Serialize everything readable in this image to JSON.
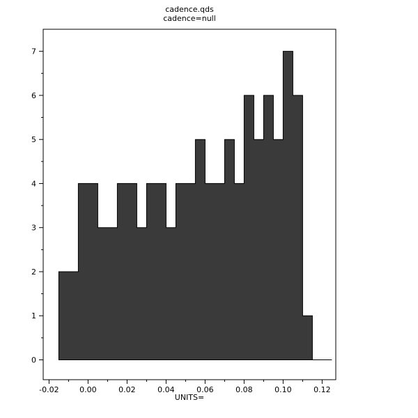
{
  "window": {
    "title": "cadence.qds"
  },
  "chart_data": {
    "type": "bar",
    "subtype": "histogram",
    "title": "cadence.qds",
    "subtitle": "cadence=null",
    "xlabel": "UNITS=",
    "ylabel": "",
    "bar_color": "#3a3a3a",
    "bar_stroke": "#000000",
    "bin_start": -0.015,
    "bin_width": 0.005,
    "counts": [
      2,
      2,
      4,
      4,
      3,
      3,
      4,
      4,
      3,
      4,
      4,
      3,
      4,
      4,
      5,
      4,
      4,
      5,
      4,
      6,
      5,
      6,
      5,
      7,
      6,
      1,
      0,
      0
    ],
    "xlim": [
      -0.023,
      0.127
    ],
    "ylim": [
      -0.45,
      7.5
    ],
    "grid": false,
    "legend": "none",
    "x_ticks": {
      "values": [
        -0.02,
        0.0,
        0.02,
        0.04,
        0.06,
        0.08,
        0.1,
        0.12
      ],
      "labels": [
        "-0.02",
        "0.00",
        "0.02",
        "0.04",
        "0.06",
        "0.08",
        "0.10",
        "0.12"
      ]
    },
    "x_minor_ticks": [
      -0.01,
      0.01,
      0.03,
      0.05,
      0.07,
      0.09,
      0.11
    ],
    "y_ticks": {
      "values": [
        0,
        1,
        2,
        3,
        4,
        5,
        6,
        7
      ],
      "labels": [
        "0",
        "1",
        "2",
        "3",
        "4",
        "5",
        "6",
        "7"
      ]
    },
    "y_minor_ticks": [
      0.5,
      1.5,
      2.5,
      3.5,
      4.5,
      5.5,
      6.5
    ]
  }
}
